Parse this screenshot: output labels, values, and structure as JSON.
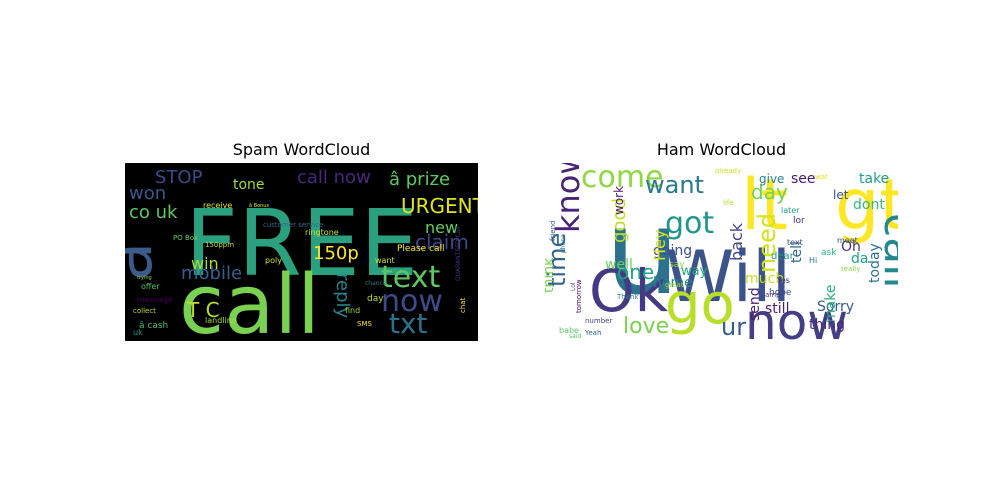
{
  "chart_data": [
    {
      "type": "wordcloud",
      "title": "Spam WordCloud",
      "background": "#000000",
      "colormap": "viridis",
      "words": [
        {
          "text": "FREE",
          "color": "#2aa07f"
        },
        {
          "text": "call",
          "color": "#7ad151"
        },
        {
          "text": "â",
          "color": "#3b5b8b"
        },
        {
          "text": "text",
          "color": "#5dc863"
        },
        {
          "text": "now",
          "color": "#3e4a89"
        },
        {
          "text": "txt",
          "color": "#2c728e"
        },
        {
          "text": "call now",
          "color": "#482878"
        },
        {
          "text": "â prize",
          "color": "#5ec962"
        },
        {
          "text": "STOP",
          "color": "#3e4989"
        },
        {
          "text": "won",
          "color": "#38598c"
        },
        {
          "text": "co uk",
          "color": "#5ec962"
        },
        {
          "text": "tone",
          "color": "#a2da37"
        },
        {
          "text": "URGENT",
          "color": "#e1e418"
        },
        {
          "text": "new",
          "color": "#67cc5c"
        },
        {
          "text": "win",
          "color": "#addc30"
        },
        {
          "text": "mobile",
          "color": "#34618d"
        },
        {
          "text": "claim",
          "color": "#3f4788"
        },
        {
          "text": "150p",
          "color": "#fde725"
        },
        {
          "text": "reply",
          "color": "#25838e"
        },
        {
          "text": "T C",
          "color": "#bade28"
        },
        {
          "text": "Please call",
          "color": "#fde725"
        },
        {
          "text": "message",
          "color": "#440154"
        },
        {
          "text": "ringtone",
          "color": "#cfe11c"
        },
        {
          "text": "receive",
          "color": "#d8e219"
        },
        {
          "text": "150ppm",
          "color": "#c2df23"
        },
        {
          "text": "PO Box",
          "color": "#6ccd5a"
        },
        {
          "text": "customer service",
          "color": "#31688e"
        },
        {
          "text": "GUARANTEED Call",
          "color": "#46327e"
        },
        {
          "text": "want",
          "color": "#cde11d"
        },
        {
          "text": "day",
          "color": "#bddf26"
        },
        {
          "text": "chat",
          "color": "#fde725"
        },
        {
          "text": "find",
          "color": "#95d840"
        },
        {
          "text": "chance",
          "color": "#29798e"
        },
        {
          "text": "â cash",
          "color": "#4ac16d"
        },
        {
          "text": "landline",
          "color": "#a5db36"
        },
        {
          "text": "SMS",
          "color": "#fde725"
        },
        {
          "text": "collect",
          "color": "#b5de2b"
        },
        {
          "text": "offer",
          "color": "#4ec36b"
        },
        {
          "text": "poly",
          "color": "#c5e021"
        },
        {
          "text": "â Bonus",
          "color": "#dde318"
        },
        {
          "text": "trying",
          "color": "#8bd646"
        },
        {
          "text": "uk",
          "color": "#21918c"
        }
      ]
    },
    {
      "type": "wordcloud",
      "title": "Ham WordCloud",
      "background": "#ffffff",
      "colormap": "viridis",
      "words": [
        {
          "text": "u",
          "color": "#2c728e"
        },
        {
          "text": "gt",
          "color": "#fde725"
        },
        {
          "text": "lt",
          "color": "#fde725"
        },
        {
          "text": "Will",
          "color": "#3b528b"
        },
        {
          "text": "now",
          "color": "#433e85"
        },
        {
          "text": "Ok",
          "color": "#443983"
        },
        {
          "text": "go",
          "color": "#b8de29"
        },
        {
          "text": "call",
          "color": "#23898e"
        },
        {
          "text": "come",
          "color": "#8fd744"
        },
        {
          "text": "know",
          "color": "#482475"
        },
        {
          "text": "got",
          "color": "#1f968b"
        },
        {
          "text": "want",
          "color": "#2a788e"
        },
        {
          "text": "day",
          "color": "#75d054"
        },
        {
          "text": "time",
          "color": "#33638d"
        },
        {
          "text": "love",
          "color": "#7ad151"
        },
        {
          "text": "ur",
          "color": "#375b8d"
        },
        {
          "text": "need",
          "color": "#d2e21b"
        },
        {
          "text": "one",
          "color": "#20a386"
        },
        {
          "text": "good",
          "color": "#bddf26"
        },
        {
          "text": "going",
          "color": "#3e4c8a"
        },
        {
          "text": "dont",
          "color": "#38b977"
        },
        {
          "text": "take",
          "color": "#1f9e89"
        },
        {
          "text": "Oh",
          "color": "#46327e"
        },
        {
          "text": "today",
          "color": "#2c728e"
        },
        {
          "text": "da",
          "color": "#1fa088"
        },
        {
          "text": "back",
          "color": "#404387"
        },
        {
          "text": "home",
          "color": "#25848e"
        },
        {
          "text": "well",
          "color": "#6ccd5a"
        },
        {
          "text": "work",
          "color": "#481668"
        },
        {
          "text": "Hey",
          "color": "#dde318"
        },
        {
          "text": "think",
          "color": "#7ad151"
        },
        {
          "text": "still",
          "color": "#482173"
        },
        {
          "text": "Sorry",
          "color": "#38588c"
        },
        {
          "text": "send",
          "color": "#481f70"
        },
        {
          "text": "much",
          "color": "#c5e021"
        },
        {
          "text": "tell",
          "color": "#31688e"
        },
        {
          "text": "see",
          "color": "#481769"
        },
        {
          "text": "give",
          "color": "#25838e"
        },
        {
          "text": "let",
          "color": "#3d4d8a"
        },
        {
          "text": "make",
          "color": "#29af7f"
        },
        {
          "text": "thing",
          "color": "#482878"
        },
        {
          "text": "way",
          "color": "#25ab82"
        },
        {
          "text": "say",
          "color": "#90d743"
        },
        {
          "text": "hope",
          "color": "#3f4889"
        },
        {
          "text": "dear",
          "color": "#20928c"
        },
        {
          "text": "lor",
          "color": "#481f70"
        },
        {
          "text": "ask",
          "color": "#2ab07f"
        },
        {
          "text": "Hi",
          "color": "#2c738e"
        },
        {
          "text": "Yes",
          "color": "#482677"
        },
        {
          "text": "later",
          "color": "#1fa088"
        },
        {
          "text": "text",
          "color": "#3b528b"
        },
        {
          "text": "babe",
          "color": "#5ec962"
        },
        {
          "text": "Thank",
          "color": "#26828e"
        },
        {
          "text": "friend",
          "color": "#375a8c"
        },
        {
          "text": "wat",
          "color": "#e2e418"
        },
        {
          "text": "meet",
          "color": "#39568c"
        },
        {
          "text": "amp",
          "color": "#46337f"
        },
        {
          "text": "already",
          "color": "#d0e11c"
        },
        {
          "text": "great",
          "color": "#a5db36"
        },
        {
          "text": "tomorrow",
          "color": "#440154"
        },
        {
          "text": "number",
          "color": "#424086"
        },
        {
          "text": "said",
          "color": "#52c569"
        },
        {
          "text": "Lol",
          "color": "#3a548c"
        },
        {
          "text": "Yeah",
          "color": "#31688e"
        },
        {
          "text": "life",
          "color": "#b5de2b"
        },
        {
          "text": "phone",
          "color": "#2a768e"
        },
        {
          "text": "really",
          "color": "#8bd646"
        }
      ]
    }
  ]
}
